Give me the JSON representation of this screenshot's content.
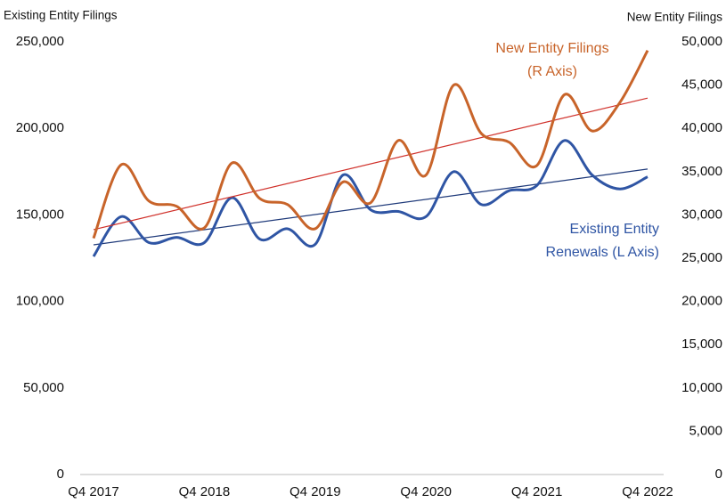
{
  "chart_data": {
    "type": "line",
    "y_axis_title": "Existing Entity Filings",
    "y2_axis_title": "New Entity Filings",
    "categories": [
      "Q4 2017",
      null,
      null,
      null,
      "Q4 2018",
      null,
      null,
      null,
      "Q4 2019",
      null,
      null,
      null,
      "Q4 2020",
      null,
      null,
      null,
      "Q4 2021",
      null,
      null,
      null,
      "Q4 2022"
    ],
    "ylim": [
      0,
      250000
    ],
    "yticks": [
      0,
      {
        "value": 50000,
        "label": "50,000"
      },
      {
        "value": 100000,
        "label": "100,000"
      },
      {
        "value": 150000,
        "label": "150,000"
      },
      {
        "value": 200000,
        "label": "200,000"
      },
      {
        "value": 250000,
        "label": "250,000"
      }
    ],
    "y2lim": [
      0,
      50000
    ],
    "y2ticks": [
      0,
      {
        "value": 5000,
        "label": "5,000"
      },
      {
        "value": 10000,
        "label": "10,000"
      },
      {
        "value": 15000,
        "label": "15,000"
      },
      {
        "value": 20000,
        "label": "20,000"
      },
      {
        "value": 25000,
        "label": "25,000"
      },
      {
        "value": 30000,
        "label": "30,000"
      },
      {
        "value": 35000,
        "label": "35,000"
      },
      {
        "value": 40000,
        "label": "40,000"
      },
      {
        "value": 45000,
        "label": "45,000"
      },
      {
        "value": 50000,
        "label": "50,000"
      }
    ],
    "grid": false,
    "series": [
      {
        "name": "Existing Entity Renewals (L Axis)",
        "label_lines": [
          "Existing Entity",
          "Renewals (L Axis)"
        ],
        "color": "#2f55a4",
        "axis": "y",
        "values": [
          126000,
          149000,
          134000,
          137000,
          134000,
          160000,
          136000,
          142000,
          133000,
          173000,
          153000,
          152000,
          149000,
          175000,
          156000,
          164000,
          167000,
          193000,
          173000,
          165000,
          172000
        ],
        "trend": {
          "color": "#1f3a7a",
          "values": [
            132700,
            176500
          ]
        }
      },
      {
        "name": "New Entity Filings (R Axis)",
        "label_lines": [
          "New Entity Filings",
          "(R Axis)"
        ],
        "color": "#c8642a",
        "axis": "y2",
        "values": [
          27300,
          35800,
          31600,
          31000,
          28500,
          36000,
          31900,
          31200,
          28400,
          33800,
          31400,
          38600,
          34600,
          45000,
          39400,
          38400,
          35700,
          43900,
          39700,
          43000,
          49000
        ],
        "trend": {
          "color": "#d0302a",
          "values": [
            28300,
            43500
          ]
        }
      }
    ]
  }
}
